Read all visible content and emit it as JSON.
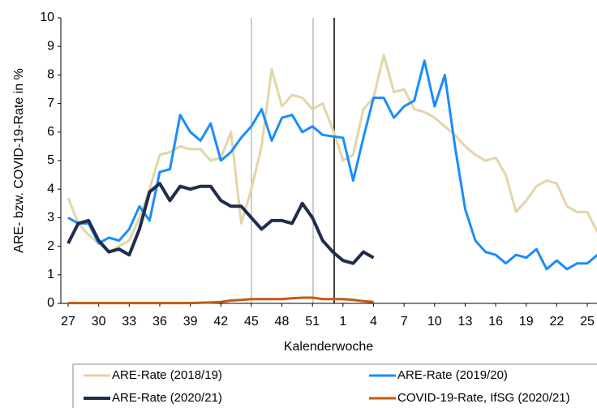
{
  "chart_data": {
    "type": "line",
    "y_label": "ARE- bzw. COVID-19-Rate in %",
    "x_label": "Kalenderwoche",
    "categories": [
      "27",
      null,
      null,
      "30",
      null,
      null,
      "33",
      null,
      null,
      "36",
      null,
      null,
      "39",
      null,
      null,
      "42",
      null,
      null,
      "45",
      null,
      null,
      "48",
      null,
      null,
      "51",
      null,
      null,
      "1",
      null,
      null,
      "4",
      null,
      null,
      "7",
      null,
      null,
      "10",
      null,
      null,
      "13",
      null,
      null,
      "16",
      null,
      null,
      "19",
      null,
      null,
      "22",
      null,
      null,
      "25",
      null
    ],
    "ylim": [
      0,
      10
    ],
    "yticks": [
      0,
      1,
      2,
      3,
      4,
      5,
      6,
      7,
      8,
      9,
      10
    ],
    "grid": false,
    "series": [
      {
        "name": "ARE-Rate (2018/19)",
        "color": "#e3d5a6",
        "width": 3,
        "values": [
          3.7,
          2.8,
          2.4,
          2.1,
          1.8,
          2.0,
          2.2,
          3.0,
          4.0,
          5.2,
          5.3,
          5.5,
          5.4,
          5.4,
          5.0,
          5.1,
          6.0,
          2.8,
          4.0,
          5.5,
          8.2,
          6.9,
          7.3,
          7.2,
          6.8,
          7.0,
          6.1,
          5.0,
          5.2,
          6.8,
          7.2,
          8.7,
          7.4,
          7.5,
          6.8,
          6.7,
          6.5,
          6.2,
          5.9,
          5.5,
          5.2,
          5.0,
          5.1,
          4.5,
          3.2,
          3.6,
          4.1,
          4.3,
          4.2,
          3.4,
          3.2,
          3.2,
          2.5
        ]
      },
      {
        "name": "ARE-Rate (2019/20)",
        "color": "#1a8cff",
        "width": 3,
        "values": [
          3.0,
          2.8,
          2.8,
          2.1,
          2.3,
          2.2,
          2.6,
          3.4,
          2.9,
          4.6,
          4.7,
          6.6,
          6.0,
          5.7,
          6.3,
          5.0,
          5.3,
          5.8,
          6.2,
          6.8,
          5.7,
          6.5,
          6.6,
          6.0,
          6.2,
          5.9,
          5.85,
          5.8,
          4.3,
          5.8,
          7.2,
          7.2,
          6.5,
          6.9,
          7.1,
          8.5,
          6.9,
          8.0,
          5.5,
          3.3,
          2.2,
          1.8,
          1.7,
          1.4,
          1.7,
          1.6,
          1.9,
          1.2,
          1.5,
          1.2,
          1.4,
          1.4,
          1.7
        ]
      },
      {
        "name": "ARE-Rate (2020/21)",
        "color": "#1f2d4e",
        "width": 4,
        "values": [
          2.1,
          2.8,
          2.9,
          2.2,
          1.8,
          1.9,
          1.7,
          2.6,
          3.9,
          4.2,
          3.6,
          4.1,
          4.0,
          4.1,
          4.1,
          3.6,
          3.4,
          3.4,
          3.0,
          2.6,
          2.9,
          2.9,
          2.8,
          3.5,
          3.0,
          2.2,
          1.8,
          1.5,
          1.4,
          1.8,
          1.6,
          null,
          null,
          null,
          null,
          null,
          null,
          null,
          null,
          null,
          null,
          null,
          null,
          null,
          null,
          null,
          null,
          null,
          null,
          null,
          null,
          null,
          null
        ]
      },
      {
        "name": "COVID-19-Rate, IfSG (2020/21)",
        "color": "#c55a11",
        "width": 3,
        "values": [
          0.01,
          0.01,
          0.01,
          0.01,
          0.01,
          0.01,
          0.01,
          0.01,
          0.01,
          0.01,
          0.01,
          0.01,
          0.01,
          0.02,
          0.03,
          0.05,
          0.1,
          0.12,
          0.15,
          0.15,
          0.15,
          0.15,
          0.18,
          0.2,
          0.2,
          0.15,
          0.15,
          0.15,
          0.12,
          0.08,
          0.05,
          null,
          null,
          null,
          null,
          null,
          null,
          null,
          null,
          null,
          null,
          null,
          null,
          null,
          null,
          null,
          null,
          null,
          null,
          null,
          null,
          null,
          null
        ]
      }
    ]
  }
}
